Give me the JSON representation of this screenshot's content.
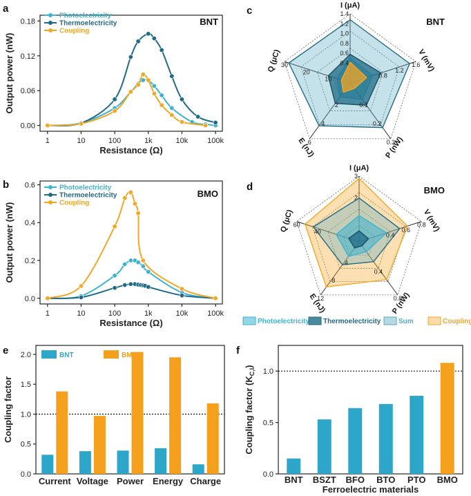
{
  "colors": {
    "photo": "#3db3d1",
    "thermo": "#1f6b86",
    "coupling": "#f5a623",
    "sum": "#5aa8bf",
    "bar_bnt": "#2ea6c9",
    "bar_bmo": "#f5a01c"
  },
  "chart_data": [
    {
      "panel": "a",
      "type": "line",
      "title": "BNT",
      "xlabel": "Resistance (Ω)",
      "ylabel": "Output power (nW)",
      "xscale": "log",
      "xlim": [
        0.6,
        160000
      ],
      "ylim": [
        -0.01,
        0.19
      ],
      "xticks": [
        1,
        10,
        100,
        1000,
        10000,
        100000
      ],
      "xtick_labels": [
        "1",
        "10",
        "100",
        "1k",
        "10k",
        "100k"
      ],
      "yticks": [
        0,
        0.06,
        0.12,
        0.18
      ],
      "ytick_labels": [
        "0.00",
        "0.06",
        "0.12",
        "0.18"
      ],
      "legend": [
        "Photoelectricity",
        "Thermoelectricity",
        "Coupling"
      ],
      "series": [
        {
          "name": "Photoelectricity",
          "x": [
            1,
            10,
            100,
            300,
            500,
            700,
            1000,
            1500,
            2500,
            5000,
            20000,
            50000,
            100000
          ],
          "y": [
            0,
            0.004,
            0.03,
            0.058,
            0.072,
            0.078,
            0.078,
            0.068,
            0.052,
            0.03,
            0.006,
            0.002,
            0
          ]
        },
        {
          "name": "Thermoelectricity",
          "x": [
            1,
            10,
            100,
            300,
            500,
            1000,
            1500,
            2500,
            5000,
            10000,
            30000,
            100000
          ],
          "y": [
            0,
            0.004,
            0.045,
            0.118,
            0.145,
            0.158,
            0.15,
            0.13,
            0.085,
            0.045,
            0.015,
            0.005
          ]
        },
        {
          "name": "Coupling",
          "x": [
            1,
            10,
            100,
            300,
            500,
            700,
            1000,
            1500,
            2500,
            5000,
            10000,
            50000
          ],
          "y": [
            0,
            0.003,
            0.025,
            0.058,
            0.07,
            0.088,
            0.078,
            0.055,
            0.035,
            0.018,
            0.006,
            0
          ]
        }
      ]
    },
    {
      "panel": "b",
      "type": "line",
      "title": "BMO",
      "xlabel": "Resistance (Ω)",
      "ylabel": "Output power (nW)",
      "xscale": "log",
      "xlim": [
        0.6,
        160000
      ],
      "ylim": [
        -0.03,
        0.62
      ],
      "xticks": [
        1,
        10,
        100,
        1000,
        10000,
        100000
      ],
      "xtick_labels": [
        "1",
        "10",
        "100",
        "1k",
        "10k",
        "100k"
      ],
      "yticks": [
        0,
        0.2,
        0.4,
        0.6
      ],
      "ytick_labels": [
        "0.0",
        "0.2",
        "0.4",
        "0.6"
      ],
      "legend": [
        "Photoelectricity",
        "Thermoelectricity",
        "Coupling"
      ],
      "series": [
        {
          "name": "Photoelectricity",
          "x": [
            1,
            10,
            100,
            200,
            300,
            400,
            500,
            700,
            1000,
            10000,
            100000
          ],
          "y": [
            0,
            0.012,
            0.12,
            0.18,
            0.2,
            0.2,
            0.19,
            0.17,
            0.14,
            0.03,
            0
          ]
        },
        {
          "name": "Thermoelectricity",
          "x": [
            1,
            10,
            100,
            200,
            300,
            400,
            500,
            600,
            700,
            800,
            1000,
            10000,
            100000
          ],
          "y": [
            0,
            0.005,
            0.055,
            0.07,
            0.075,
            0.075,
            0.072,
            0.07,
            0.068,
            0.066,
            0.06,
            0.015,
            0
          ]
        },
        {
          "name": "Coupling",
          "x": [
            1,
            10,
            100,
            200,
            300,
            400,
            500,
            700,
            10000,
            100000
          ],
          "y": [
            0,
            0.065,
            0.38,
            0.53,
            0.56,
            0.5,
            0.45,
            0.2,
            0.05,
            0
          ]
        }
      ]
    },
    {
      "panel": "c",
      "type": "radar",
      "title": "BNT",
      "axes": [
        {
          "label": "I (μA)",
          "max": 1.4,
          "ticks": [
            "0.4",
            "0.6",
            "0.8",
            "1.0",
            "1.2",
            "1.4"
          ]
        },
        {
          "label": "V (mV)",
          "max": 1.6,
          "ticks": [
            "0.8",
            "1.2",
            "1.6"
          ]
        },
        {
          "label": "P (nW)",
          "max": 0.3,
          "ticks": [
            "0.1",
            "0.2",
            "0.3"
          ]
        },
        {
          "label": "E (nJ)",
          "max": 6,
          "ticks": [
            "2",
            "4",
            "6"
          ]
        },
        {
          "label": "Q (μC)",
          "max": 30,
          "ticks": [
            "10",
            "20",
            "30"
          ]
        }
      ],
      "series": [
        {
          "name": "Photoelectricity",
          "values": [
            0.5,
            0.55,
            0.09,
            1.5,
            6
          ]
        },
        {
          "name": "Thermoelectricity",
          "values": [
            0.58,
            0.75,
            0.12,
            2.2,
            10
          ]
        },
        {
          "name": "Sum",
          "values": [
            1.28,
            1.45,
            0.24,
            4.6,
            28
          ]
        },
        {
          "name": "Coupling",
          "values": [
            0.42,
            0.4,
            0.03,
            1.0,
            4
          ]
        }
      ]
    },
    {
      "panel": "d",
      "type": "radar",
      "title": "BMO",
      "axes": [
        {
          "label": "I (μA)",
          "max": 3,
          "ticks": [
            "2",
            "3"
          ]
        },
        {
          "label": "V (mV)",
          "max": 0.8,
          "ticks": [
            "0.4",
            "0.6",
            "0.8"
          ]
        },
        {
          "label": "P (nW)",
          "max": 0.8,
          "ticks": [
            "0.4",
            "0.8"
          ]
        },
        {
          "label": "E (nJ)",
          "max": 12,
          "ticks": [
            "4",
            "8",
            "12"
          ]
        },
        {
          "label": "Q (μC)",
          "max": 60,
          "ticks": [
            "40",
            "60"
          ]
        }
      ],
      "series": [
        {
          "name": "Photoelectricity",
          "values": [
            1.2,
            0.35,
            0.15,
            3.3,
            22
          ]
        },
        {
          "name": "Thermoelectricity",
          "values": [
            0.5,
            0.12,
            0.06,
            1.4,
            10
          ]
        },
        {
          "name": "Sum",
          "values": [
            2.0,
            0.52,
            0.3,
            5.2,
            44
          ]
        },
        {
          "name": "Coupling",
          "values": [
            2.9,
            0.62,
            0.57,
            10.2,
            52
          ]
        }
      ]
    },
    {
      "panel": "e",
      "type": "bar",
      "categories": [
        "Current",
        "Voltage",
        "Power",
        "Energy",
        "Charge"
      ],
      "ylabel": "Coupling factor",
      "ylim": [
        0,
        2.15
      ],
      "yticks": [
        0,
        0.5,
        1.0,
        1.5,
        2.0
      ],
      "ytick_labels": [
        "0.0",
        "0.5",
        "1.0",
        "1.5",
        "2.0"
      ],
      "reference_line": 1.0,
      "legend": [
        "BNT",
        "BMO"
      ],
      "series": [
        {
          "name": "BNT",
          "values": [
            0.32,
            0.38,
            0.39,
            0.43,
            0.16
          ]
        },
        {
          "name": "BMO",
          "values": [
            1.38,
            0.97,
            2.04,
            1.95,
            1.18
          ]
        }
      ]
    },
    {
      "panel": "f",
      "type": "bar",
      "categories": [
        "BNT",
        "BSZT",
        "BFO",
        "BTO",
        "PTO",
        "BMO"
      ],
      "xlabel": "Ferroelectric materials",
      "ylabel": "Coupling factor (K",
      "ylabel_sub": "C,I",
      "ylim": [
        0,
        1.25
      ],
      "yticks": [
        0,
        0.5,
        1.0
      ],
      "ytick_labels": [
        "0.0",
        "0.5",
        "1.0"
      ],
      "reference_line": 1.0,
      "values": [
        0.15,
        0.53,
        0.64,
        0.68,
        0.76,
        1.08
      ],
      "highlight": "BMO"
    }
  ],
  "radar_legend": [
    "Photoelectricity",
    "Thermoelectricity",
    "Sum",
    "Coupling"
  ],
  "panel_labels": [
    "a",
    "b",
    "c",
    "d",
    "e",
    "f"
  ]
}
